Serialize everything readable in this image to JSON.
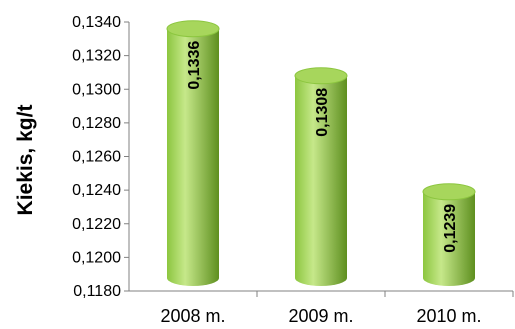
{
  "chart_data": {
    "type": "bar",
    "style": "cylinder",
    "categories": [
      "2008 m.",
      "2009 m.",
      "2010 m."
    ],
    "values": [
      0.1336,
      0.1308,
      0.1239
    ],
    "value_labels": [
      "0,1336",
      "0,1308",
      "0,1239"
    ],
    "ylabel": "Kiekis, kg/t",
    "ylim": [
      0.118,
      0.134
    ],
    "ytick_values": [
      0.118,
      0.12,
      0.122,
      0.124,
      0.126,
      0.128,
      0.13,
      0.132,
      0.134
    ],
    "ytick_labels": [
      "0,1180",
      "0,1200",
      "0,1220",
      "0,1240",
      "0,1260",
      "0,1280",
      "0,1300",
      "0,1320",
      "0,1340"
    ],
    "grid": false,
    "legend": "none",
    "colors": {
      "bar_main": "#8cc63f",
      "bar_light": "#c6e88a",
      "bar_dark": "#5e8f1f",
      "bar_top": "#a7d65c",
      "axis": "#808080"
    }
  }
}
